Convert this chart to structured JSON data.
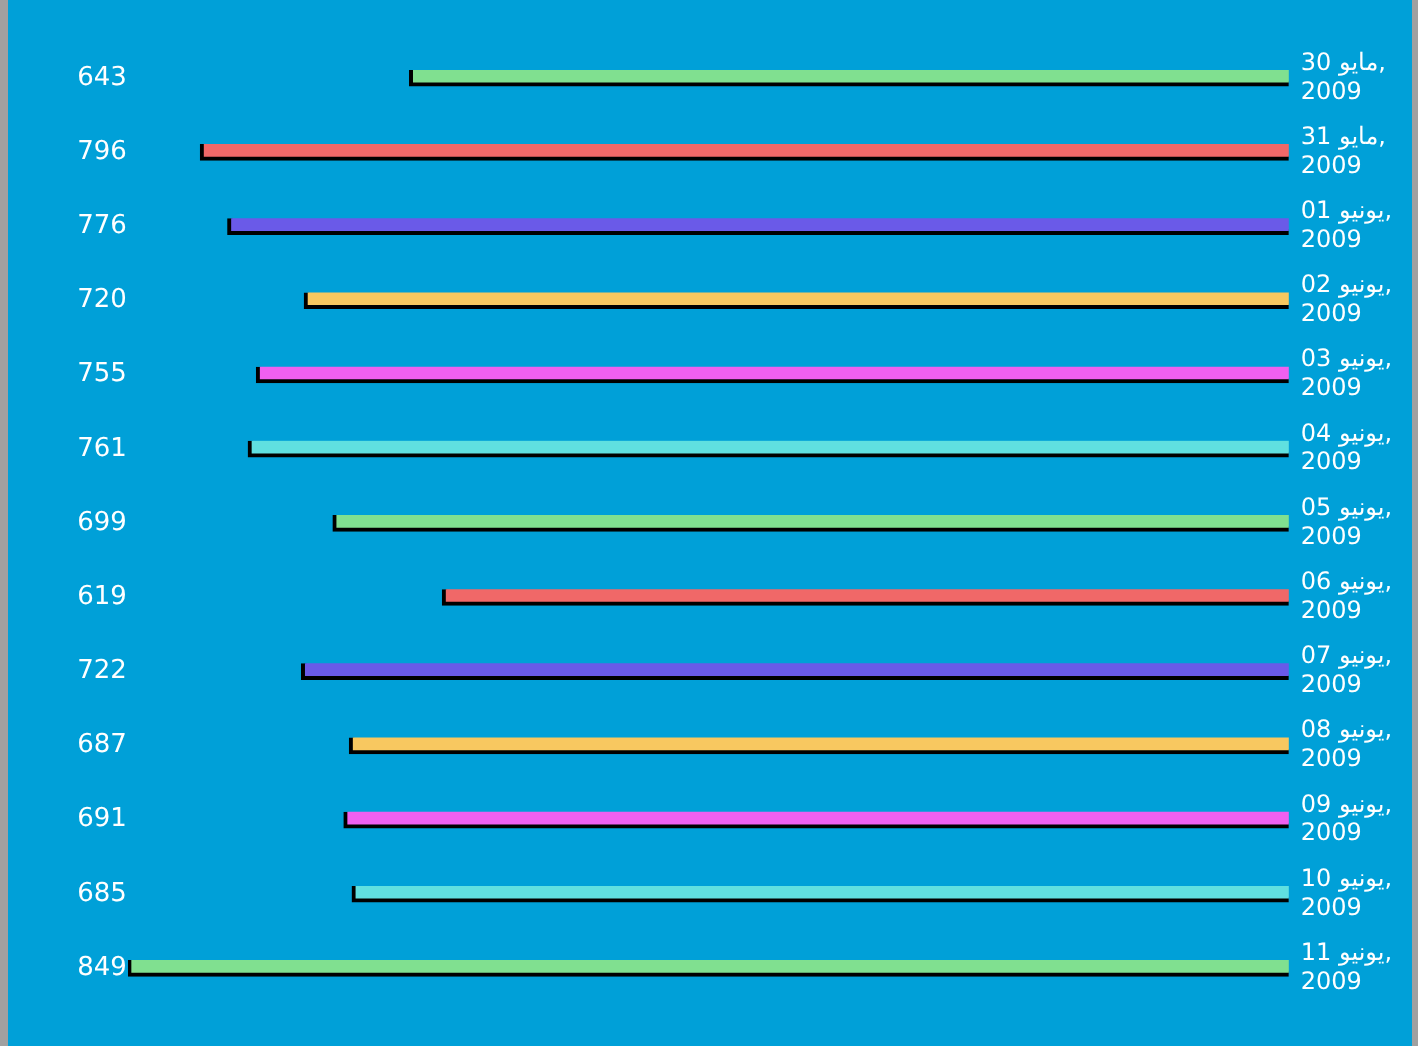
{
  "chart_data": {
    "type": "bar",
    "orientation": "horizontal",
    "categories": [
      "مايو 30, 2009",
      "مايو 31, 2009",
      "يونيو 01, 2009",
      "يونيو 02, 2009",
      "يونيو 03, 2009",
      "يونيو 04, 2009",
      "يونيو 05, 2009",
      "يونيو 06, 2009",
      "يونيو 07, 2009",
      "يونيو 08, 2009",
      "يونيو 09, 2009",
      "يونيو 10, 2009",
      "يونيو 11, 2009"
    ],
    "values": [
      643,
      796,
      776,
      720,
      755,
      761,
      699,
      619,
      722,
      687,
      691,
      685,
      849
    ],
    "colors": [
      "#80e090",
      "#f06868",
      "#6a5ae8",
      "#f8c860",
      "#f060f0",
      "#60e0e0",
      "#80e090",
      "#f06868",
      "#6a5ae8",
      "#f8c860",
      "#f060f0",
      "#60e0e0",
      "#80e090"
    ],
    "tick_labels": "y",
    "data_labels": true,
    "legend": false,
    "grid": false
  }
}
